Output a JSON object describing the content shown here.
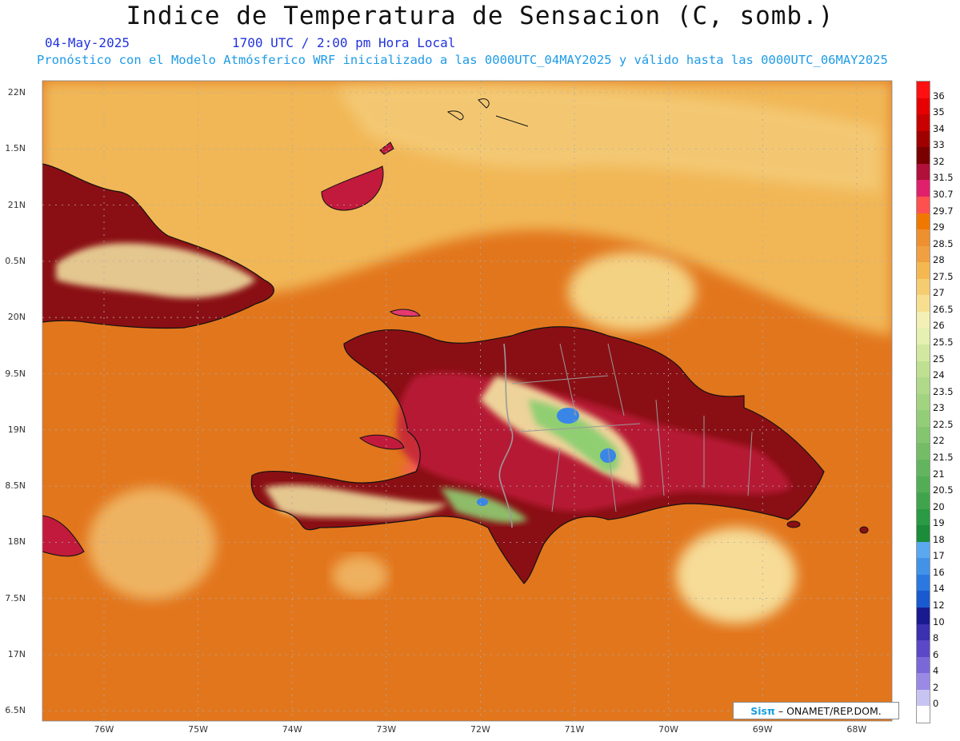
{
  "title": "Indice de Temperatura de Sensacion (C, somb.)",
  "date": "04-May-2025",
  "time": "1700 UTC / 2:00 pm Hora Local",
  "model_line": "Pronóstico con el Modelo Atmósferico WRF inicializado a las 0000UTC_04MAY2025 y válido hasta las  0000UTC_06MAY2025",
  "credit": {
    "brand": "Sisπ",
    "text": "– ONAMET/REP.DOM."
  },
  "lat_labels": [
    "22N",
    "1.5N",
    "21N",
    "0.5N",
    "20N",
    "9.5N",
    "19N",
    "8.5N",
    "18N",
    "7.5N",
    "17N",
    "6.5N"
  ],
  "lon_labels": [
    "76W",
    "75W",
    "74W",
    "73W",
    "72W",
    "71W",
    "70W",
    "69W",
    "68W"
  ],
  "colorbar": {
    "labels": [
      "36",
      "35",
      "34",
      "33",
      "32",
      "31.5",
      "30.7",
      "29.7",
      "29",
      "28.5",
      "28",
      "27.5",
      "27",
      "26.5",
      "26",
      "25.5",
      "25",
      "24",
      "23.5",
      "23",
      "22.5",
      "22",
      "21.5",
      "21",
      "20.5",
      "20",
      "19",
      "18",
      "17",
      "16",
      "14",
      "12",
      "10",
      "8",
      "6",
      "4",
      "2",
      "0"
    ],
    "colors": [
      "#ff1010",
      "#e60000",
      "#c80000",
      "#a00000",
      "#7a0000",
      "#b0103a",
      "#e0206a",
      "#ff5050",
      "#f07800",
      "#ee8f30",
      "#f0a040",
      "#f5b850",
      "#f5cc70",
      "#f7df8f",
      "#f3efb5",
      "#e6f0b0",
      "#d2e8a0",
      "#bfe090",
      "#b0d98a",
      "#a2d480",
      "#94cd78",
      "#84c570",
      "#74bd66",
      "#62b55e",
      "#52ad55",
      "#40a44c",
      "#2a9a44",
      "#1a8c3a",
      "#5aa8f0",
      "#4292e8",
      "#2a78e0",
      "#1a5ad0",
      "#1a1a90",
      "#3a30b0",
      "#5a48c8",
      "#7a68d8",
      "#9a8ae6",
      "#c8c4f2"
    ]
  },
  "colors": {
    "ocean": "#e2761d",
    "ocean_light": "#ee9a45",
    "north_band": "#f1b757",
    "north_light": "#f4cc7a",
    "land_dark": "#8a0f14",
    "land_mid": "#c21a3c",
    "land_pink": "#e53a6e",
    "land_light": "#f4e7a5",
    "land_green": "#8fcf72",
    "land_blue": "#3a86e6",
    "coast": "#111111",
    "border": "#9a9a9a"
  }
}
